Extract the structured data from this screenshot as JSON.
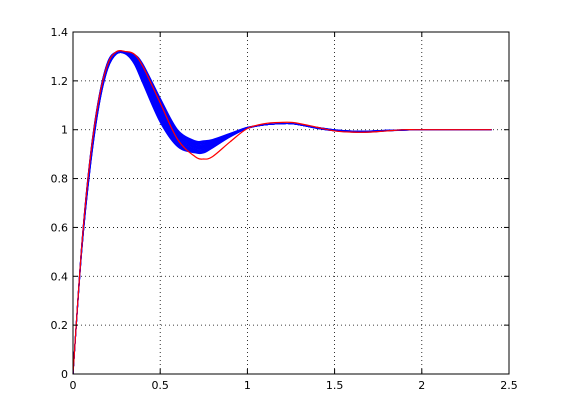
{
  "chart_data": {
    "type": "line",
    "title": "",
    "xlabel": "",
    "ylabel": "",
    "xlim": [
      0,
      2.5
    ],
    "ylim": [
      0,
      1.4
    ],
    "xticks": [
      "0",
      "0.5",
      "1",
      "1.5",
      "2",
      "2.5"
    ],
    "yticks": [
      "0",
      "0.2",
      "0.4",
      "0.6",
      "0.8",
      "1",
      "1.2",
      "1.4"
    ],
    "grid": true,
    "grid_style": "dotted",
    "legend": "none",
    "series": [
      {
        "color": "#0000ff",
        "note_count": 20,
        "x": [
          0,
          0.05,
          0.1,
          0.15,
          0.2,
          0.25,
          0.3,
          0.35,
          0.4,
          0.5,
          0.6,
          0.7,
          0.75,
          0.8,
          0.9,
          1.0,
          1.1,
          1.2,
          1.25,
          1.3,
          1.4,
          1.5,
          1.6,
          1.7,
          1.8,
          1.9,
          2.0,
          2.1,
          2.2,
          2.3,
          2.4
        ],
        "y_low": [
          0,
          0.5,
          0.85,
          1.1,
          1.25,
          1.31,
          1.31,
          1.27,
          1.19,
          1.03,
          0.93,
          0.905,
          0.905,
          0.925,
          0.97,
          1.005,
          1.02,
          1.025,
          1.025,
          1.02,
          1.005,
          0.995,
          0.99,
          0.99,
          0.995,
          0.998,
          1.0,
          1.0,
          1.0,
          1.0,
          1.0
        ],
        "y_high": [
          0,
          0.53,
          0.9,
          1.14,
          1.28,
          1.32,
          1.32,
          1.31,
          1.27,
          1.13,
          1.0,
          0.955,
          0.955,
          0.96,
          0.985,
          1.01,
          1.02,
          1.025,
          1.025,
          1.02,
          1.01,
          1.0,
          0.995,
          0.995,
          0.998,
          1.0,
          1.0,
          1.0,
          1.0,
          1.0,
          1.0
        ]
      },
      {
        "color": "#ff0000",
        "x": [
          0,
          0.05,
          0.1,
          0.15,
          0.2,
          0.25,
          0.3,
          0.35,
          0.4,
          0.5,
          0.6,
          0.7,
          0.75,
          0.8,
          0.9,
          1.0,
          1.1,
          1.2,
          1.25,
          1.3,
          1.4,
          1.5,
          1.6,
          1.7,
          1.8,
          1.9,
          2.0,
          2.1,
          2.2,
          2.3,
          2.4
        ],
        "y": [
          0,
          0.52,
          0.89,
          1.13,
          1.27,
          1.32,
          1.32,
          1.31,
          1.26,
          1.11,
          0.96,
          0.89,
          0.88,
          0.89,
          0.95,
          1.005,
          1.025,
          1.03,
          1.03,
          1.025,
          1.01,
          0.995,
          0.99,
          0.99,
          0.995,
          1.0,
          1.0,
          1.0,
          1.0,
          1.0,
          1.0
        ]
      }
    ]
  }
}
